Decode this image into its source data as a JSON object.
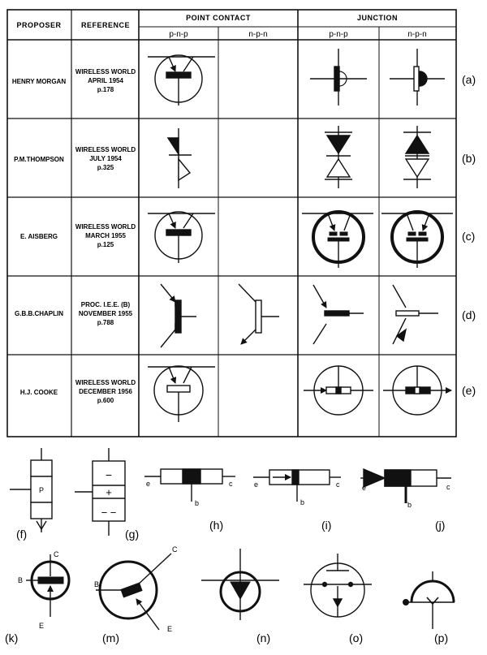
{
  "table": {
    "headers": {
      "proposer": "PROPOSER",
      "reference": "REFERENCE",
      "point_contact": "POINT CONTACT",
      "junction": "JUNCTION",
      "pc_pnp": "p-n-p",
      "pc_npn": "n-p-n",
      "j_pnp": "p-n-p",
      "j_npn": "n-p-n"
    },
    "rows": [
      {
        "label": "(a)",
        "proposer": "HENRY MORGAN",
        "ref": [
          "WIRELESS WORLD",
          "APRIL 1954",
          "p.178"
        ]
      },
      {
        "label": "(b)",
        "proposer": "P.M.THOMPSON",
        "ref": [
          "WIRELESS WORLD",
          "JULY 1954",
          "p.325"
        ]
      },
      {
        "label": "(c)",
        "proposer": "E. AISBERG",
        "ref": [
          "WIRELESS WORLD",
          "MARCH 1955",
          "p.125"
        ]
      },
      {
        "label": "(d)",
        "proposer": "G.B.B.CHAPLIN",
        "ref": [
          "PROC. I.E.E. (B)",
          "NOVEMBER 1955",
          "p.788"
        ]
      },
      {
        "label": "(e)",
        "proposer": "H.J. COOKE",
        "ref": [
          "WIRELESS WORLD",
          "DECEMBER 1956",
          "p.600"
        ]
      }
    ]
  },
  "figures": {
    "f": {
      "label": "(f)",
      "region": "P"
    },
    "g": {
      "label": "(g)",
      "top": "−",
      "mid": "+",
      "bot": "− −"
    },
    "h": {
      "label": "(h)",
      "e": "e",
      "c": "c",
      "b": "b"
    },
    "i": {
      "label": "(i)",
      "e": "e",
      "c": "c",
      "b": "b"
    },
    "j": {
      "label": "(j)",
      "e": "e",
      "c": "c",
      "b": "b"
    },
    "k": {
      "label": "(k)",
      "c": "C",
      "b": "B",
      "e": "E"
    },
    "m": {
      "label": "(m)",
      "c": "C",
      "b": "B",
      "e": "E"
    },
    "n": {
      "label": "(n)"
    },
    "o": {
      "label": "(o)"
    },
    "p": {
      "label": "(p)"
    }
  }
}
